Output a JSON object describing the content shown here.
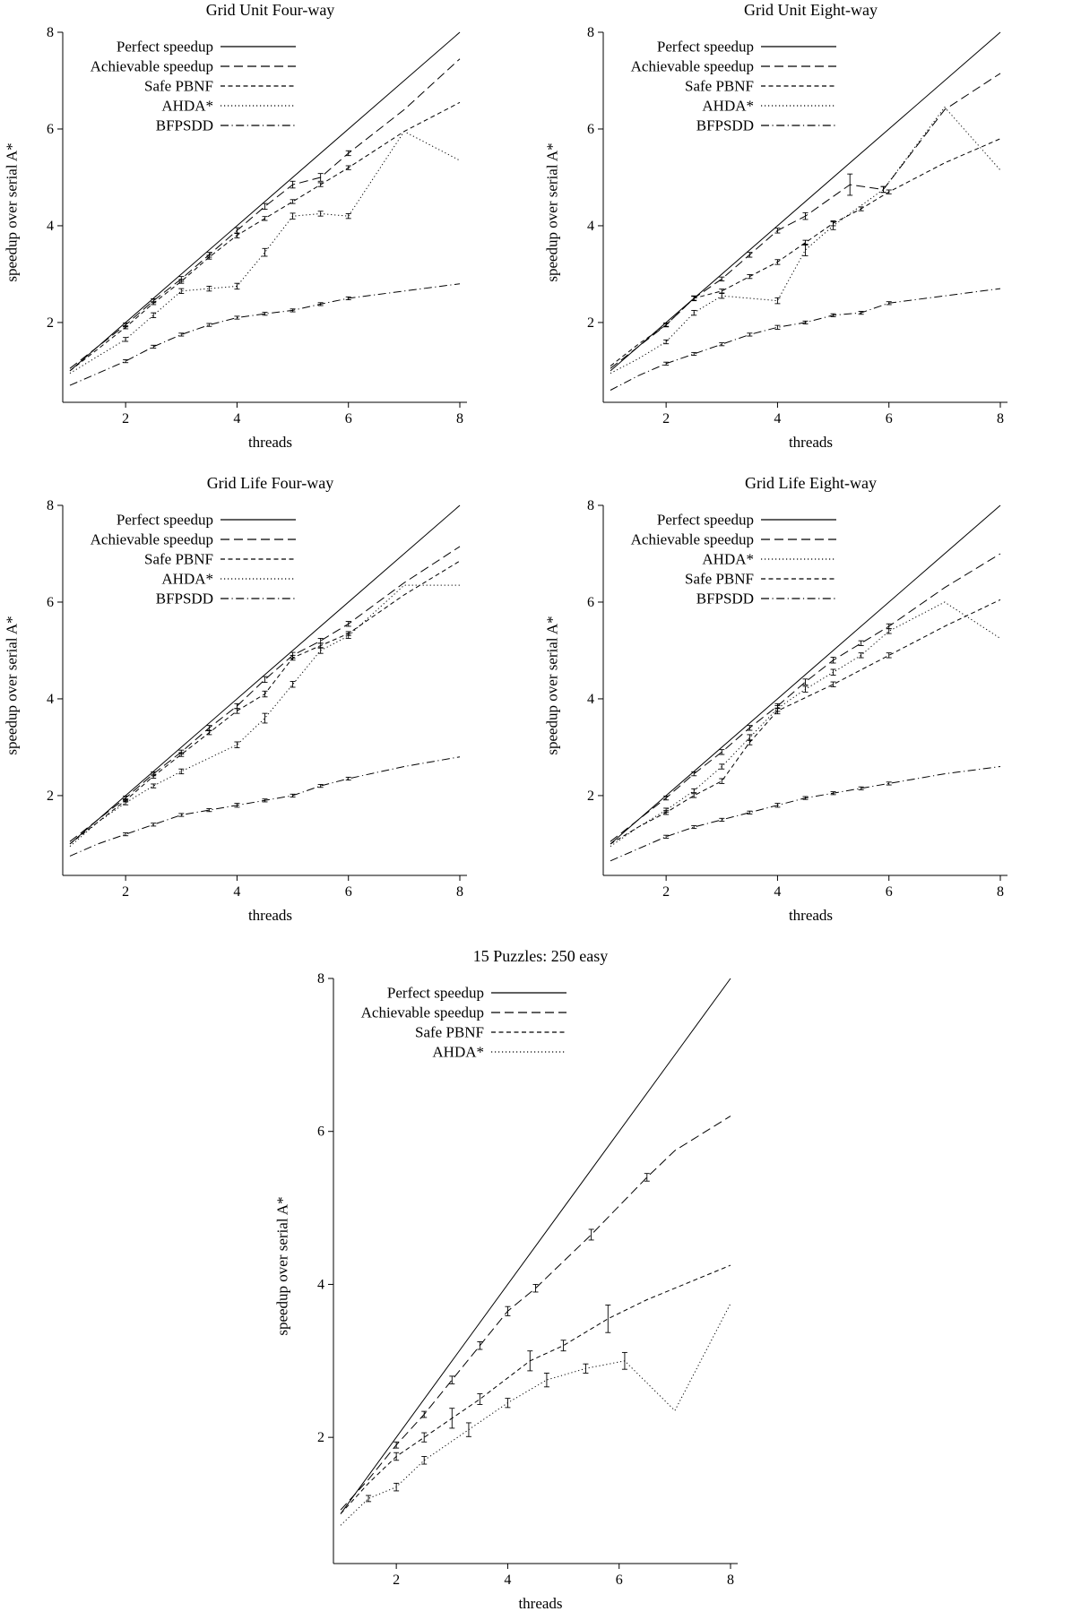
{
  "page": {
    "background": "#ffffff",
    "ink": "#000000"
  },
  "chart_data": [
    {
      "type": "line",
      "title": "Grid Unit Four-way",
      "xlabel": "threads",
      "ylabel": "speedup over serial A*",
      "xlim": [
        1,
        8
      ],
      "ylim": [
        0.35,
        8
      ],
      "xticks": [
        2,
        4,
        6,
        8
      ],
      "yticks": [
        2,
        4,
        6,
        8
      ],
      "legend_position": "top-left",
      "series": [
        {
          "name": "Perfect speedup",
          "style": "solid",
          "x": [
            1,
            8
          ],
          "y": [
            1,
            8
          ]
        },
        {
          "name": "Achievable speedup",
          "style": "long-dash",
          "x": [
            1,
            1.5,
            2,
            2.5,
            3,
            3.5,
            4,
            4.5,
            5,
            5.5,
            6,
            7,
            8
          ],
          "y": [
            1.05,
            1.5,
            1.95,
            2.45,
            2.9,
            3.4,
            3.9,
            4.4,
            4.85,
            5.0,
            5.5,
            6.4,
            7.45
          ],
          "err": [
            0,
            0,
            0.04,
            0.04,
            0.05,
            0.05,
            0.06,
            0.06,
            0.07,
            0.08,
            0.05,
            0,
            0
          ]
        },
        {
          "name": "Safe PBNF",
          "style": "short-dash",
          "x": [
            1,
            1.5,
            2,
            2.5,
            3,
            3.5,
            4,
            4.5,
            5,
            5.5,
            6,
            7,
            8
          ],
          "y": [
            1.0,
            1.45,
            1.9,
            2.4,
            2.85,
            3.35,
            3.8,
            4.15,
            4.5,
            4.85,
            5.2,
            5.95,
            6.55
          ],
          "err": [
            0,
            0,
            0.03,
            0.03,
            0.04,
            0.04,
            0.05,
            0.04,
            0.04,
            0.04,
            0.04,
            0,
            0
          ]
        },
        {
          "name": "AHDA*",
          "style": "dotted",
          "x": [
            1,
            1.5,
            2,
            2.5,
            3,
            3.5,
            4,
            4.5,
            5,
            5.5,
            6,
            7,
            8
          ],
          "y": [
            0.95,
            1.3,
            1.65,
            2.15,
            2.65,
            2.7,
            2.75,
            3.45,
            4.2,
            4.25,
            4.2,
            5.95,
            5.35
          ],
          "err": [
            0,
            0,
            0.04,
            0.05,
            0.05,
            0.05,
            0.06,
            0.08,
            0.06,
            0.05,
            0.05,
            0,
            0
          ]
        },
        {
          "name": "BFPSDD",
          "style": "dash-dot",
          "x": [
            1,
            1.5,
            2,
            2.5,
            3,
            3.5,
            4,
            4.5,
            5,
            5.5,
            6,
            7,
            8
          ],
          "y": [
            0.7,
            0.95,
            1.2,
            1.5,
            1.75,
            1.95,
            2.1,
            2.18,
            2.25,
            2.38,
            2.5,
            2.65,
            2.8
          ],
          "err": [
            0,
            0,
            0.03,
            0.03,
            0.03,
            0.03,
            0.03,
            0.03,
            0.03,
            0.03,
            0.03,
            0,
            0
          ]
        }
      ]
    },
    {
      "type": "line",
      "title": "Grid Unit Eight-way",
      "xlabel": "threads",
      "ylabel": "speedup over serial A*",
      "xlim": [
        1,
        8
      ],
      "ylim": [
        0.35,
        8
      ],
      "xticks": [
        2,
        4,
        6,
        8
      ],
      "yticks": [
        2,
        4,
        6,
        8
      ],
      "legend_position": "top-left",
      "series": [
        {
          "name": "Perfect speedup",
          "style": "solid",
          "x": [
            1,
            8
          ],
          "y": [
            1,
            8
          ]
        },
        {
          "name": "Achievable speedup",
          "style": "long-dash",
          "x": [
            1,
            1.5,
            2,
            2.5,
            3,
            3.5,
            4,
            4.5,
            5.3,
            5.9,
            7,
            8
          ],
          "y": [
            1.05,
            1.5,
            1.95,
            2.5,
            2.9,
            3.4,
            3.9,
            4.2,
            4.85,
            4.75,
            6.4,
            7.15
          ],
          "err": [
            0,
            0,
            0.03,
            0.04,
            0.04,
            0.05,
            0.05,
            0.07,
            0.22,
            0.06,
            0,
            0
          ]
        },
        {
          "name": "Safe PBNF",
          "style": "short-dash",
          "x": [
            1,
            1.5,
            2,
            2.5,
            3,
            3.5,
            4,
            4.5,
            5,
            5.5,
            6,
            7,
            8
          ],
          "y": [
            1.1,
            1.55,
            1.95,
            2.5,
            2.65,
            2.95,
            3.25,
            3.65,
            4.05,
            4.35,
            4.7,
            5.3,
            5.8
          ],
          "err": [
            0,
            0,
            0.04,
            0.05,
            0.04,
            0.04,
            0.05,
            0.05,
            0.05,
            0.04,
            0.04,
            0,
            0
          ]
        },
        {
          "name": "AHDA*",
          "style": "dotted",
          "x": [
            1,
            1.5,
            2,
            2.5,
            3,
            4,
            4.5,
            5,
            5.9,
            7,
            8
          ],
          "y": [
            0.95,
            1.25,
            1.6,
            2.2,
            2.55,
            2.45,
            3.5,
            4.0,
            4.75,
            6.45,
            5.15
          ],
          "err": [
            0,
            0,
            0.04,
            0.05,
            0.05,
            0.06,
            0.12,
            0.08,
            0.06,
            0,
            0
          ]
        },
        {
          "name": "BFPSDD",
          "style": "dash-dot",
          "x": [
            1,
            1.5,
            2,
            2.5,
            3,
            3.5,
            4,
            4.5,
            5,
            5.5,
            6,
            7,
            8
          ],
          "y": [
            0.6,
            0.9,
            1.15,
            1.35,
            1.55,
            1.75,
            1.9,
            2.0,
            2.15,
            2.2,
            2.4,
            2.55,
            2.7
          ],
          "err": [
            0,
            0,
            0.03,
            0.03,
            0.03,
            0.03,
            0.04,
            0.03,
            0.03,
            0.03,
            0.03,
            0,
            0
          ]
        }
      ]
    },
    {
      "type": "line",
      "title": "Grid Life Four-way",
      "xlabel": "threads",
      "ylabel": "speedup over serial A*",
      "xlim": [
        1,
        8
      ],
      "ylim": [
        0.35,
        8
      ],
      "xticks": [
        2,
        4,
        6,
        8
      ],
      "yticks": [
        2,
        4,
        6,
        8
      ],
      "legend_position": "top-left",
      "series": [
        {
          "name": "Perfect speedup",
          "style": "solid",
          "x": [
            1,
            8
          ],
          "y": [
            1,
            8
          ]
        },
        {
          "name": "Achievable speedup",
          "style": "long-dash",
          "x": [
            1,
            1.5,
            2,
            2.5,
            3,
            3.5,
            4,
            4.5,
            5,
            5.5,
            6,
            7,
            8
          ],
          "y": [
            1.05,
            1.5,
            1.95,
            2.45,
            2.9,
            3.4,
            3.85,
            4.4,
            4.9,
            5.2,
            5.55,
            6.4,
            7.15
          ],
          "err": [
            0,
            0,
            0.04,
            0.04,
            0.04,
            0.05,
            0.05,
            0.06,
            0.06,
            0.05,
            0.05,
            0,
            0
          ]
        },
        {
          "name": "Safe PBNF",
          "style": "short-dash",
          "x": [
            1,
            1.5,
            2,
            2.5,
            3,
            3.5,
            4,
            4.5,
            5,
            5.5,
            6,
            7,
            8
          ],
          "y": [
            1.0,
            1.45,
            1.9,
            2.4,
            2.85,
            3.3,
            3.75,
            4.1,
            4.85,
            5.1,
            5.35,
            6.15,
            6.85
          ],
          "err": [
            0,
            0,
            0.03,
            0.04,
            0.04,
            0.04,
            0.05,
            0.06,
            0.05,
            0.05,
            0.04,
            0,
            0
          ]
        },
        {
          "name": "AHDA*",
          "style": "dotted",
          "x": [
            1,
            1.5,
            2,
            2.5,
            3,
            4,
            4.5,
            5,
            5.5,
            6,
            7,
            8
          ],
          "y": [
            0.95,
            1.45,
            1.85,
            2.2,
            2.5,
            3.05,
            3.6,
            4.3,
            5.0,
            5.3,
            6.35,
            6.35
          ],
          "err": [
            0,
            0,
            0.04,
            0.04,
            0.05,
            0.06,
            0.1,
            0.06,
            0.06,
            0.05,
            0,
            0
          ]
        },
        {
          "name": "BFPSDD",
          "style": "dash-dot",
          "x": [
            1,
            1.5,
            2,
            2.5,
            3,
            3.5,
            4,
            4.5,
            5,
            5.5,
            6,
            7,
            8
          ],
          "y": [
            0.75,
            1.0,
            1.2,
            1.4,
            1.6,
            1.7,
            1.8,
            1.9,
            2.0,
            2.2,
            2.35,
            2.6,
            2.8
          ],
          "err": [
            0,
            0,
            0.03,
            0.03,
            0.03,
            0.03,
            0.04,
            0.03,
            0.03,
            0.03,
            0.03,
            0,
            0
          ]
        }
      ]
    },
    {
      "type": "line",
      "title": "Grid Life Eight-way",
      "xlabel": "threads",
      "ylabel": "speedup over serial A*",
      "xlim": [
        1,
        8
      ],
      "ylim": [
        0.35,
        8
      ],
      "xticks": [
        2,
        4,
        6,
        8
      ],
      "yticks": [
        2,
        4,
        6,
        8
      ],
      "legend_position": "top-left",
      "series": [
        {
          "name": "Perfect speedup",
          "style": "solid",
          "x": [
            1,
            8
          ],
          "y": [
            1,
            8
          ]
        },
        {
          "name": "Achievable speedup",
          "style": "long-dash",
          "x": [
            1,
            1.5,
            2,
            2.5,
            3,
            3.5,
            4,
            4.5,
            5,
            5.5,
            6,
            7,
            8
          ],
          "y": [
            1.05,
            1.5,
            1.95,
            2.45,
            2.9,
            3.4,
            3.85,
            4.35,
            4.8,
            5.15,
            5.5,
            6.3,
            7.0
          ],
          "err": [
            0,
            0,
            0.04,
            0.04,
            0.05,
            0.05,
            0.05,
            0.06,
            0.06,
            0.05,
            0.05,
            0,
            0
          ]
        },
        {
          "name": "AHDA*",
          "style": "dotted",
          "x": [
            1,
            1.5,
            2,
            2.5,
            3,
            3.5,
            4,
            4.5,
            5,
            5.5,
            6,
            7,
            8
          ],
          "y": [
            0.95,
            1.35,
            1.7,
            2.1,
            2.6,
            3.2,
            3.8,
            4.2,
            4.55,
            4.9,
            5.4,
            6.0,
            5.25
          ],
          "err": [
            0,
            0,
            0.04,
            0.04,
            0.05,
            0.06,
            0.06,
            0.06,
            0.06,
            0.05,
            0.05,
            0,
            0
          ]
        },
        {
          "name": "Safe PBNF",
          "style": "short-dash",
          "x": [
            1,
            1.5,
            2,
            2.5,
            3,
            3.5,
            4,
            5,
            6,
            7,
            8
          ],
          "y": [
            1.0,
            1.35,
            1.65,
            2.0,
            2.3,
            3.1,
            3.75,
            4.3,
            4.9,
            5.5,
            6.05
          ],
          "err": [
            0,
            0,
            0.04,
            0.04,
            0.05,
            0.05,
            0.06,
            0.05,
            0.05,
            0,
            0
          ]
        },
        {
          "name": "BFPSDD",
          "style": "dash-dot",
          "x": [
            1,
            1.5,
            2,
            2.5,
            3,
            3.5,
            4,
            4.5,
            5,
            5.5,
            6,
            7,
            8
          ],
          "y": [
            0.65,
            0.9,
            1.15,
            1.35,
            1.5,
            1.65,
            1.8,
            1.95,
            2.05,
            2.15,
            2.25,
            2.45,
            2.6
          ],
          "err": [
            0,
            0,
            0.03,
            0.03,
            0.03,
            0.03,
            0.04,
            0.03,
            0.03,
            0.03,
            0.03,
            0,
            0
          ]
        }
      ]
    },
    {
      "type": "line",
      "title": "15 Puzzles: 250 easy",
      "xlabel": "threads",
      "ylabel": "speedup over serial A*",
      "xlim": [
        1,
        8
      ],
      "ylim": [
        0.35,
        8
      ],
      "xticks": [
        2,
        4,
        6,
        8
      ],
      "yticks": [
        2,
        4,
        6,
        8
      ],
      "legend_position": "top-left",
      "series": [
        {
          "name": "Perfect speedup",
          "style": "solid",
          "x": [
            1,
            8
          ],
          "y": [
            1,
            8
          ]
        },
        {
          "name": "Achievable speedup",
          "style": "long-dash",
          "x": [
            1,
            1.5,
            2,
            2.5,
            3,
            3.5,
            4,
            4.5,
            5.5,
            6.5,
            7,
            8
          ],
          "y": [
            1.05,
            1.45,
            1.9,
            2.3,
            2.75,
            3.2,
            3.65,
            3.95,
            4.65,
            5.4,
            5.75,
            6.2
          ],
          "err": [
            0,
            0,
            0.04,
            0.04,
            0.05,
            0.05,
            0.06,
            0.05,
            0.07,
            0.05,
            0,
            0
          ]
        },
        {
          "name": "Safe PBNF",
          "style": "short-dash",
          "x": [
            1,
            1.5,
            2,
            2.5,
            3,
            3.5,
            4.4,
            5,
            5.8,
            6.5,
            7,
            8
          ],
          "y": [
            1.0,
            1.4,
            1.75,
            2.0,
            2.25,
            2.5,
            3.0,
            3.2,
            3.55,
            3.8,
            3.95,
            4.25
          ],
          "err": [
            0,
            0,
            0.05,
            0.06,
            0.13,
            0.07,
            0.13,
            0.07,
            0.18,
            0,
            0,
            0
          ]
        },
        {
          "name": "AHDA*",
          "style": "dotted",
          "x": [
            1,
            1.5,
            2,
            2.5,
            3.3,
            4,
            4.7,
            5.4,
            6.1,
            7,
            8
          ],
          "y": [
            0.85,
            1.2,
            1.35,
            1.7,
            2.1,
            2.45,
            2.75,
            2.9,
            3.0,
            2.35,
            3.75
          ],
          "err": [
            0,
            0.04,
            0.05,
            0.05,
            0.09,
            0.06,
            0.09,
            0.06,
            0.11,
            0,
            0
          ]
        }
      ]
    }
  ]
}
